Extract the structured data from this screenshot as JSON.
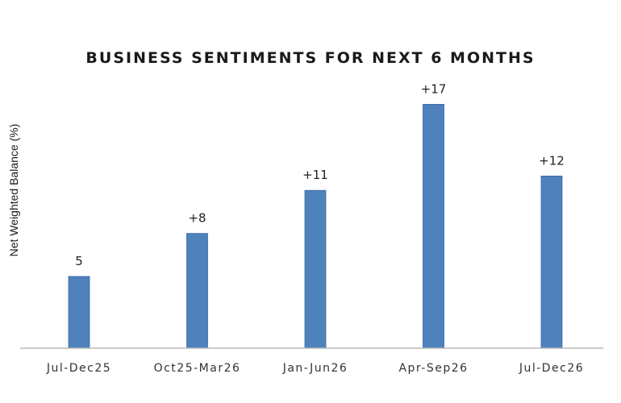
{
  "chart_data": {
    "type": "bar",
    "title": "BUSINESS SENTIMENTS FOR NEXT 6 MONTHS",
    "xlabel": "",
    "ylabel": "Net Weighted Balance (%)",
    "categories": [
      "Jul-Dec25",
      "Oct25-Mar26",
      "Jan-Jun26",
      "Apr-Sep26",
      "Jul-Dec26"
    ],
    "values": [
      5,
      8,
      11,
      17,
      12
    ],
    "data_labels": [
      "5",
      "+8",
      "+11",
      "+17",
      "+12"
    ],
    "ylim": [
      0,
      17
    ],
    "grid": false,
    "legend": "none",
    "bar_color": "#4f81bd",
    "bar_edge_color": "#3a6aa3",
    "axis_color": "#b8b8b8"
  }
}
